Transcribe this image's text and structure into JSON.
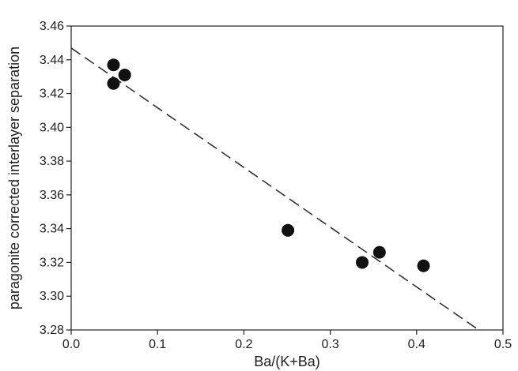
{
  "chart_data": {
    "type": "scatter",
    "title": "",
    "xlabel": "Ba/(K+Ba)",
    "ylabel": "paragonite corrected interlayer separation",
    "xlim": [
      0.0,
      0.5
    ],
    "ylim": [
      3.28,
      3.46
    ],
    "x_ticks": [
      0.0,
      0.1,
      0.2,
      0.3,
      0.4,
      0.5
    ],
    "x_tick_labels": [
      "0.0",
      "0.1",
      "0.2",
      "0.3",
      "0.4",
      "0.5"
    ],
    "y_ticks": [
      3.28,
      3.3,
      3.32,
      3.34,
      3.36,
      3.38,
      3.4,
      3.42,
      3.44,
      3.46
    ],
    "y_tick_labels": [
      "3.28",
      "3.30",
      "3.32",
      "3.34",
      "3.36",
      "3.38",
      "3.40",
      "3.42",
      "3.44",
      "3.46"
    ],
    "grid": false,
    "legend": "none",
    "marker_color": "#111111",
    "line_color": "#333333",
    "points": [
      {
        "x": 0.049,
        "y": 3.437
      },
      {
        "x": 0.049,
        "y": 3.426
      },
      {
        "x": 0.062,
        "y": 3.431
      },
      {
        "x": 0.251,
        "y": 3.339
      },
      {
        "x": 0.337,
        "y": 3.32
      },
      {
        "x": 0.357,
        "y": 3.326
      },
      {
        "x": 0.408,
        "y": 3.318
      }
    ],
    "trend_line": {
      "style": "dashed",
      "start": {
        "x": 0.0,
        "y": 3.447
      },
      "end": {
        "x": 0.472,
        "y": 3.28
      }
    }
  }
}
